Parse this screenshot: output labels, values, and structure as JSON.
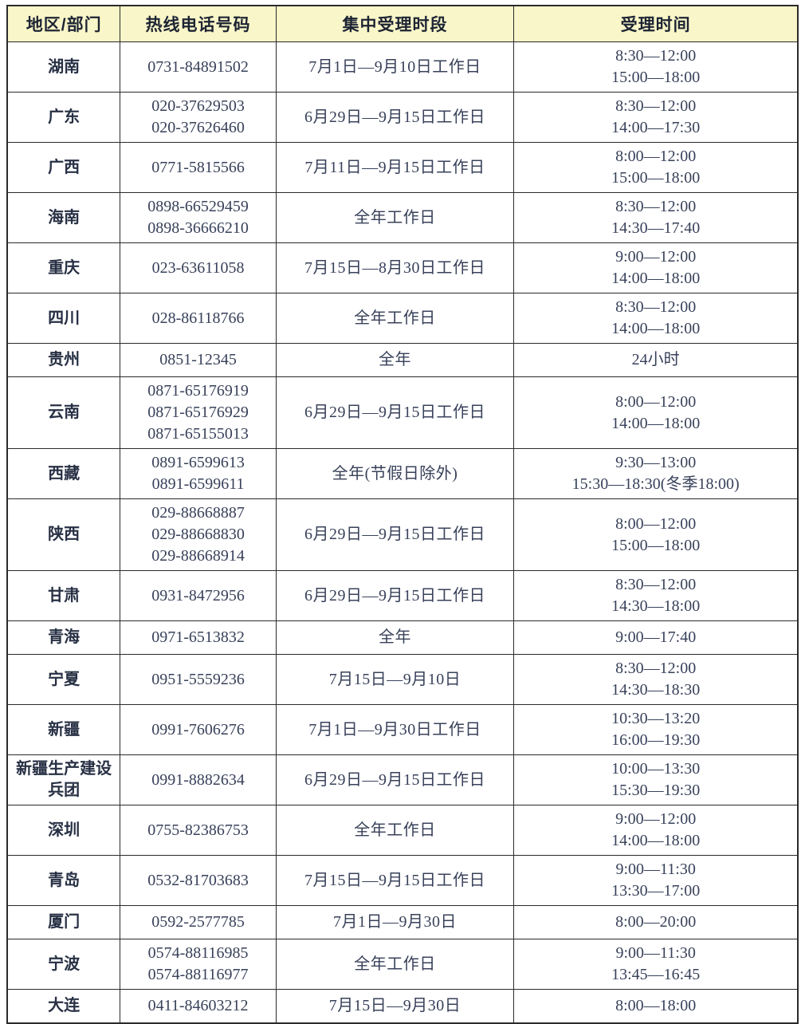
{
  "table": {
    "headers": {
      "region": "地区/部门",
      "phone": "热线电话号码",
      "period": "集中受理时段",
      "time": "受理时间"
    },
    "rows": [
      {
        "region": "湖南",
        "phones": [
          "0731-84891502"
        ],
        "period": "7月1日—9月10日工作日",
        "times": [
          "8:30—12:00",
          "15:00—18:00"
        ]
      },
      {
        "region": "广东",
        "phones": [
          "020-37629503",
          "020-37626460"
        ],
        "period": "6月29日—9月15日工作日",
        "times": [
          "8:30—12:00",
          "14:00—17:30"
        ]
      },
      {
        "region": "广西",
        "phones": [
          "0771-5815566"
        ],
        "period": "7月11日—9月15日工作日",
        "times": [
          "8:00—12:00",
          "15:00—18:00"
        ]
      },
      {
        "region": "海南",
        "phones": [
          "0898-66529459",
          "0898-36666210"
        ],
        "period": "全年工作日",
        "times": [
          "8:30—12:00",
          "14:30—17:40"
        ]
      },
      {
        "region": "重庆",
        "phones": [
          "023-63611058"
        ],
        "period": "7月15日—8月30日工作日",
        "times": [
          "9:00—12:00",
          "14:00—18:00"
        ]
      },
      {
        "region": "四川",
        "phones": [
          "028-86118766"
        ],
        "period": "全年工作日",
        "times": [
          "8:30—12:00",
          "14:00—18:00"
        ]
      },
      {
        "region": "贵州",
        "phones": [
          "0851-12345"
        ],
        "period": "全年",
        "times": [
          "24小时"
        ]
      },
      {
        "region": "云南",
        "phones": [
          "0871-65176919",
          "0871-65176929",
          "0871-65155013"
        ],
        "period": "6月29日—9月15日工作日",
        "times": [
          "8:00—12:00",
          "14:00—18:00"
        ]
      },
      {
        "region": "西藏",
        "phones": [
          "0891-6599613",
          "0891-6599611"
        ],
        "period": "全年(节假日除外)",
        "times": [
          "9:30—13:00",
          "15:30—18:30(冬季18:00)"
        ]
      },
      {
        "region": "陕西",
        "phones": [
          "029-88668887",
          "029-88668830",
          "029-88668914"
        ],
        "period": "6月29日—9月15日工作日",
        "times": [
          "8:00—12:00",
          "15:00—18:00"
        ]
      },
      {
        "region": "甘肃",
        "phones": [
          "0931-8472956"
        ],
        "period": "6月29日—9月15日工作日",
        "times": [
          "8:30—12:00",
          "14:30—18:00"
        ]
      },
      {
        "region": "青海",
        "phones": [
          "0971-6513832"
        ],
        "period": "全年",
        "times": [
          "9:00—17:40"
        ]
      },
      {
        "region": "宁夏",
        "phones": [
          "0951-5559236"
        ],
        "period": "7月15日—9月10日",
        "times": [
          "8:30—12:00",
          "14:30—18:30"
        ]
      },
      {
        "region": "新疆",
        "phones": [
          "0991-7606276"
        ],
        "period": "7月1日—9月30日工作日",
        "times": [
          "10:30—13:20",
          "16:00—19:30"
        ]
      },
      {
        "region": "新疆生产建设兵团",
        "phones": [
          "0991-8882634"
        ],
        "period": "6月29日—9月15日工作日",
        "times": [
          "10:00—13:30",
          "15:30—19:30"
        ]
      },
      {
        "region": "深圳",
        "phones": [
          "0755-82386753"
        ],
        "period": "全年工作日",
        "times": [
          "9:00—12:00",
          "14:00—18:00"
        ]
      },
      {
        "region": "青岛",
        "phones": [
          "0532-81703683"
        ],
        "period": "7月15日—9月15日工作日",
        "times": [
          "9:00—11:30",
          "13:30—17:00"
        ]
      },
      {
        "region": "厦门",
        "phones": [
          "0592-2577785"
        ],
        "period": "7月1日—9月30日",
        "times": [
          "8:00—20:00"
        ]
      },
      {
        "region": "宁波",
        "phones": [
          "0574-88116985",
          "0574-88116977"
        ],
        "period": "全年工作日",
        "times": [
          "9:00—11:30",
          "13:45—16:45"
        ]
      },
      {
        "region": "大连",
        "phones": [
          "0411-84603212"
        ],
        "period": "7月15日—9月30日",
        "times": [
          "8:00—18:00"
        ]
      }
    ]
  },
  "colors": {
    "header_bg": "#f9f6c9",
    "border": "#2a2a2a",
    "body_text": "#38415a",
    "header_text": "#1d2433"
  }
}
